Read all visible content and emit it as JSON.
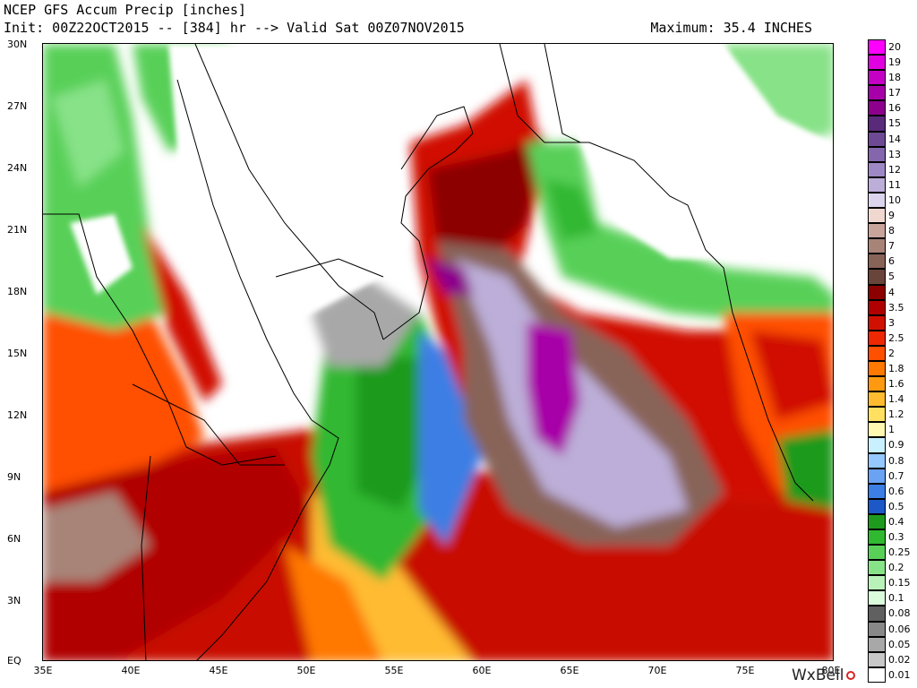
{
  "header": {
    "title": "NCEP GFS Accum Precip [inches]",
    "subtitle": "Init: 00Z22OCT2015 -- [384] hr --> Valid Sat 00Z07NOV2015",
    "maximum": "Maximum: 35.4 INCHES"
  },
  "map": {
    "lat_ticks": [
      "30N",
      "27N",
      "24N",
      "21N",
      "18N",
      "15N",
      "12N",
      "9N",
      "6N",
      "3N",
      "EQ"
    ],
    "lon_ticks": [
      "35E",
      "40E",
      "45E",
      "50E",
      "55E",
      "60E",
      "65E",
      "70E",
      "75E",
      "80E"
    ],
    "lat_range": [
      0,
      30
    ],
    "lon_range": [
      35,
      80
    ]
  },
  "legend": {
    "units": "inches",
    "items": [
      {
        "label": "20",
        "color": "#ff00ff"
      },
      {
        "label": "19",
        "color": "#e000e0"
      },
      {
        "label": "18",
        "color": "#c400c4"
      },
      {
        "label": "17",
        "color": "#a800a8"
      },
      {
        "label": "16",
        "color": "#8c008c"
      },
      {
        "label": "15",
        "color": "#5a2a7a"
      },
      {
        "label": "14",
        "color": "#6e4a94"
      },
      {
        "label": "13",
        "color": "#8466ac"
      },
      {
        "label": "12",
        "color": "#9e88c4"
      },
      {
        "label": "11",
        "color": "#bcaed8"
      },
      {
        "label": "10",
        "color": "#dcd4ec"
      },
      {
        "label": "9",
        "color": "#f0d8d0"
      },
      {
        "label": "8",
        "color": "#c8a49a"
      },
      {
        "label": "7",
        "color": "#a88478"
      },
      {
        "label": "6",
        "color": "#886458"
      },
      {
        "label": "5",
        "color": "#68443a"
      },
      {
        "label": "4",
        "color": "#8c0000"
      },
      {
        "label": "3.5",
        "color": "#b00000"
      },
      {
        "label": "3",
        "color": "#d01000"
      },
      {
        "label": "2.5",
        "color": "#ee2800"
      },
      {
        "label": "2",
        "color": "#ff5000"
      },
      {
        "label": "1.8",
        "color": "#ff7800"
      },
      {
        "label": "1.6",
        "color": "#ff9a10"
      },
      {
        "label": "1.4",
        "color": "#ffbb30"
      },
      {
        "label": "1.2",
        "color": "#ffe060"
      },
      {
        "label": "1",
        "color": "#fff8b0"
      },
      {
        "label": "0.9",
        "color": "#c8f0ff"
      },
      {
        "label": "0.8",
        "color": "#94c8ff"
      },
      {
        "label": "0.7",
        "color": "#6aa2f4"
      },
      {
        "label": "0.6",
        "color": "#3c7ee4"
      },
      {
        "label": "0.5",
        "color": "#1c58c8"
      },
      {
        "label": "0.4",
        "color": "#1e9a1e"
      },
      {
        "label": "0.3",
        "color": "#30b830"
      },
      {
        "label": "0.25",
        "color": "#58d058"
      },
      {
        "label": "0.2",
        "color": "#88e288"
      },
      {
        "label": "0.15",
        "color": "#b8f2b8"
      },
      {
        "label": "0.1",
        "color": "#dcfadc"
      },
      {
        "label": "0.08",
        "color": "#606060"
      },
      {
        "label": "0.06",
        "color": "#888888"
      },
      {
        "label": "0.05",
        "color": "#a8a8a8"
      },
      {
        "label": "0.02",
        "color": "#c8c8c8"
      },
      {
        "label": "0.01",
        "color": "#ffffff"
      }
    ]
  },
  "brand": "WxBell"
}
